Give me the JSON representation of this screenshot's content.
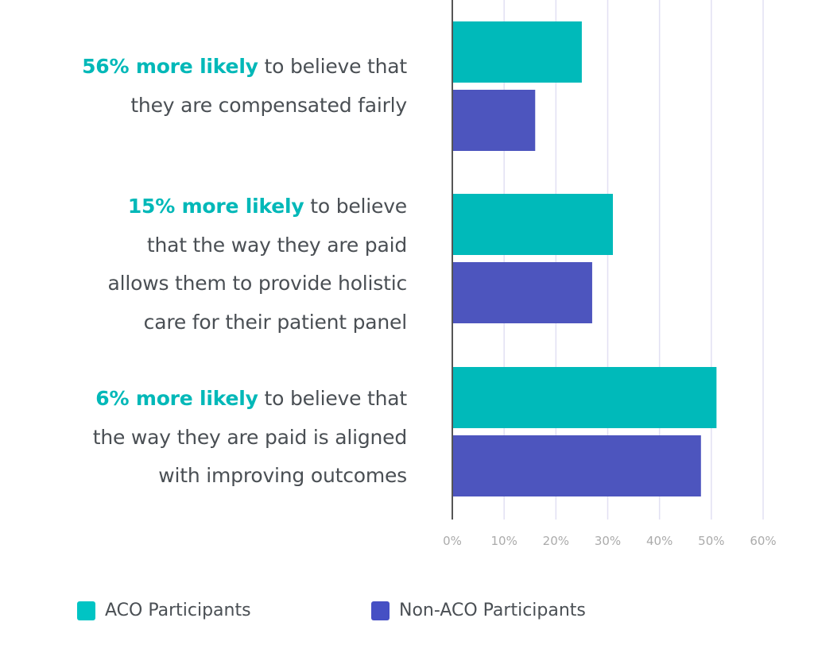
{
  "chart_data": {
    "type": "bar",
    "orientation": "horizontal",
    "title": "",
    "xlabel": "",
    "ylabel": "",
    "xlim": [
      0,
      60
    ],
    "x_ticks": [
      "0%",
      "10%",
      "20%",
      "30%",
      "40%",
      "50%",
      "60%"
    ],
    "grid": true,
    "legend_position": "bottom",
    "categories": [
      {
        "highlight": "56% more likely",
        "rest": " to believe that they are compensated fairly",
        "lines": [
          [
            "56% more likely",
            " to believe that"
          ],
          [
            "",
            "they are compensated fairly"
          ]
        ]
      },
      {
        "highlight": "15% more likely",
        "rest": " to believe that the way they are paid allows them to provide holistic care for their patient panel",
        "lines": [
          [
            "15% more likely",
            " to believe"
          ],
          [
            "",
            "that the way they are paid"
          ],
          [
            "",
            "allows them to provide holistic"
          ],
          [
            "",
            "care for their patient panel"
          ]
        ]
      },
      {
        "highlight": "6% more likely",
        "rest": " to believe that the way they are paid is aligned with improving outcomes",
        "lines": [
          [
            "6% more likely",
            " to believe that"
          ],
          [
            "",
            "the way they are paid is aligned"
          ],
          [
            "",
            "with improving outcomes"
          ]
        ]
      }
    ],
    "series": [
      {
        "name": "ACO Participants",
        "color": "#00baba",
        "values": [
          25,
          31,
          51
        ]
      },
      {
        "name": "Non-ACO Participants",
        "color": "#4d55be",
        "values": [
          16,
          27,
          48
        ]
      }
    ]
  },
  "legend": [
    {
      "label": "ACO Participants",
      "color": "#00baba"
    },
    {
      "label": "Non-ACO Participants",
      "color": "#4d55be"
    }
  ]
}
